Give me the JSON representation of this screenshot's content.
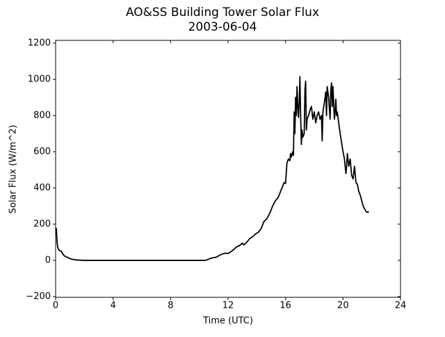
{
  "chart_data": {
    "type": "line",
    "title": "AO&SS Building Tower Solar Flux",
    "subtitle": "2003-06-04",
    "xlabel": "Time (UTC)",
    "ylabel": "Solar Flux (W/m^2)",
    "xlim": [
      0,
      24
    ],
    "xticks": [
      0,
      4,
      8,
      12,
      16,
      20,
      24
    ],
    "ylim": [
      -204,
      1215
    ],
    "yticks": [
      {
        "value": -200,
        "label": "−200"
      },
      0,
      200,
      400,
      600,
      800,
      1000,
      1200
    ],
    "series": [
      {
        "name": "Solar Flux",
        "color": "#000000",
        "x": [
          0,
          0.05,
          0.1,
          0.15,
          0.25,
          0.4,
          0.5,
          0.6,
          0.8,
          1.0,
          1.2,
          1.5,
          2,
          4,
          6,
          8,
          10,
          10.4,
          10.6,
          10.8,
          11,
          11.2,
          11.4,
          11.6,
          11.8,
          12,
          12.2,
          12.4,
          12.6,
          12.8,
          13,
          13.1,
          13.3,
          13.5,
          13.7,
          13.9,
          14.1,
          14.3,
          14.5,
          14.7,
          14.9,
          15.1,
          15.3,
          15.5,
          15.7,
          15.9,
          16.0,
          16.1,
          16.2,
          16.3,
          16.35,
          16.4,
          16.5,
          16.55,
          16.6,
          16.65,
          16.7,
          16.75,
          16.8,
          16.85,
          16.9,
          16.95,
          17.0,
          17.05,
          17.1,
          17.15,
          17.2,
          17.3,
          17.35,
          17.4,
          17.45,
          17.5,
          17.6,
          17.7,
          17.8,
          17.9,
          18.0,
          18.1,
          18.2,
          18.3,
          18.4,
          18.5,
          18.55,
          18.6,
          18.7,
          18.8,
          18.85,
          18.9,
          19.0,
          19.1,
          19.15,
          19.2,
          19.25,
          19.3,
          19.4,
          19.45,
          19.5,
          19.55,
          19.6,
          19.7,
          19.8,
          19.9,
          20.0,
          20.1,
          20.2,
          20.25,
          20.3,
          20.4,
          20.5,
          20.6,
          20.7,
          20.8,
          20.9,
          21.0,
          21.1,
          21.2,
          21.3,
          21.4,
          21.5,
          21.6,
          21.7,
          21.8
        ],
        "values": [
          180,
          175,
          100,
          70,
          55,
          50,
          35,
          25,
          18,
          10,
          5,
          2,
          0,
          0,
          0,
          0,
          0,
          0,
          5,
          12,
          15,
          18,
          28,
          35,
          40,
          38,
          48,
          60,
          75,
          82,
          95,
          85,
          100,
          120,
          130,
          145,
          155,
          175,
          215,
          230,
          260,
          300,
          330,
          350,
          390,
          430,
          425,
          540,
          560,
          550,
          590,
          570,
          600,
          580,
          820,
          700,
          900,
          800,
          960,
          850,
          790,
          870,
          1015,
          800,
          640,
          720,
          680,
          700,
          940,
          990,
          720,
          780,
          800,
          830,
          850,
          780,
          820,
          760,
          800,
          820,
          780,
          800,
          660,
          820,
          870,
          930,
          800,
          960,
          900,
          780,
          940,
          980,
          850,
          960,
          780,
          820,
          890,
          800,
          820,
          760,
          700,
          650,
          600,
          560,
          480,
          520,
          590,
          520,
          560,
          470,
          450,
          520,
          430,
          420,
          380,
          360,
          330,
          300,
          285,
          270,
          265,
          270
        ]
      }
    ]
  }
}
